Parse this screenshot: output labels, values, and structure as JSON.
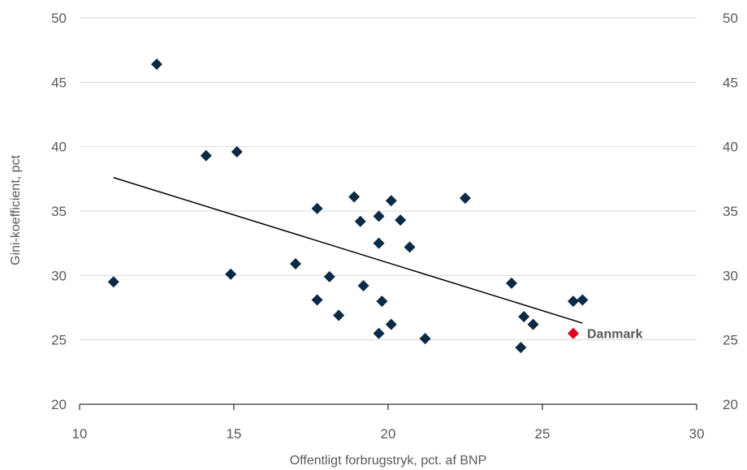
{
  "chart_data": {
    "type": "scatter",
    "title": "",
    "xlabel": "Offentligt forbrugstryk, pct. af BNP",
    "ylabel": "Gini-koefficient, pct",
    "xlim": [
      10,
      30
    ],
    "ylim": [
      20,
      50
    ],
    "x_ticks": [
      "10",
      "15",
      "20",
      "25",
      "30"
    ],
    "y_ticks": [
      "20",
      "25",
      "30",
      "35",
      "40",
      "45",
      "50"
    ],
    "right_axis_ticks": true,
    "grid": "horizontal",
    "series": [
      {
        "color": "#0b2a45",
        "marker": "diamond",
        "points": [
          {
            "x": 11.1,
            "y": 29.5
          },
          {
            "x": 12.5,
            "y": 46.4
          },
          {
            "x": 14.1,
            "y": 39.3
          },
          {
            "x": 15.1,
            "y": 39.6
          },
          {
            "x": 14.9,
            "y": 30.1
          },
          {
            "x": 17.0,
            "y": 30.9
          },
          {
            "x": 17.7,
            "y": 35.2
          },
          {
            "x": 17.7,
            "y": 28.1
          },
          {
            "x": 18.1,
            "y": 29.9
          },
          {
            "x": 18.4,
            "y": 26.9
          },
          {
            "x": 18.9,
            "y": 36.1
          },
          {
            "x": 19.1,
            "y": 34.2
          },
          {
            "x": 19.2,
            "y": 29.2
          },
          {
            "x": 19.7,
            "y": 34.6
          },
          {
            "x": 19.7,
            "y": 32.5
          },
          {
            "x": 19.7,
            "y": 25.5
          },
          {
            "x": 19.8,
            "y": 28.0
          },
          {
            "x": 20.1,
            "y": 35.8
          },
          {
            "x": 20.1,
            "y": 26.2
          },
          {
            "x": 20.4,
            "y": 34.3
          },
          {
            "x": 20.7,
            "y": 32.2
          },
          {
            "x": 21.2,
            "y": 25.1
          },
          {
            "x": 22.5,
            "y": 36.0
          },
          {
            "x": 24.0,
            "y": 29.4
          },
          {
            "x": 24.3,
            "y": 24.4
          },
          {
            "x": 24.4,
            "y": 26.8
          },
          {
            "x": 24.7,
            "y": 26.2
          },
          {
            "x": 26.0,
            "y": 28.0
          },
          {
            "x": 26.3,
            "y": 28.1
          }
        ]
      },
      {
        "name": "Danmark",
        "color": "#e0001b",
        "marker": "diamond",
        "points": [
          {
            "x": 26.0,
            "y": 25.5
          }
        ]
      }
    ],
    "trendline": {
      "color": "#000000",
      "points": [
        {
          "x": 11.1,
          "y": 37.6
        },
        {
          "x": 26.3,
          "y": 26.3
        }
      ]
    },
    "annotations": [
      {
        "text": "Danmark",
        "x": 26.0,
        "y": 25.5
      }
    ]
  }
}
